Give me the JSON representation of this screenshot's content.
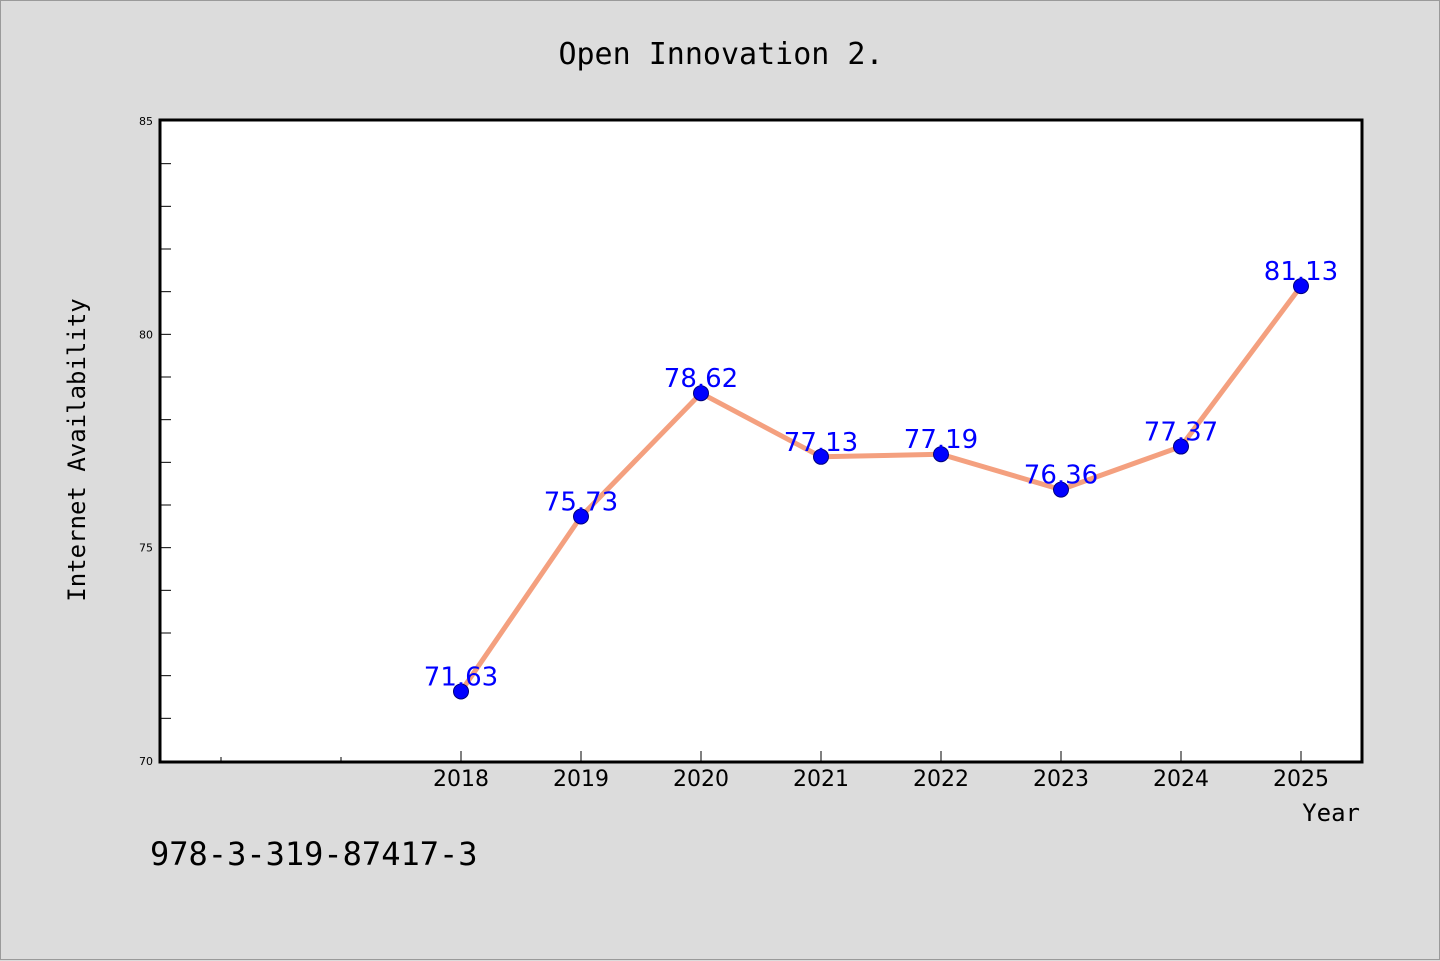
{
  "chart_data": {
    "type": "line",
    "title": "Open Innovation 2.",
    "xlabel": "Year",
    "ylabel": "Internet Availability",
    "x": [
      "2018",
      "2019",
      "2020",
      "2021",
      "2022",
      "2023",
      "2024",
      "2025"
    ],
    "series": [
      {
        "values": [
          71.63,
          75.73,
          78.62,
          77.13,
          77.19,
          76.36,
          77.37,
          81.13
        ],
        "line_color": "#f4a07f",
        "marker_color": "#0000ff"
      }
    ],
    "data_labels": [
      "71.63",
      "75.73",
      "78.62",
      "77.13",
      "77.19",
      "76.36",
      "77.37",
      "81.13"
    ],
    "data_label_color": "#0000ff",
    "ylim": [
      70,
      85
    ],
    "yticks": [
      "70",
      "75",
      "80",
      "85"
    ],
    "grid": false
  },
  "caption": "978-3-319-87417-3",
  "colors": {
    "background": "#dcdcdc",
    "plot_background": "#ffffff",
    "axes": "#000000"
  }
}
